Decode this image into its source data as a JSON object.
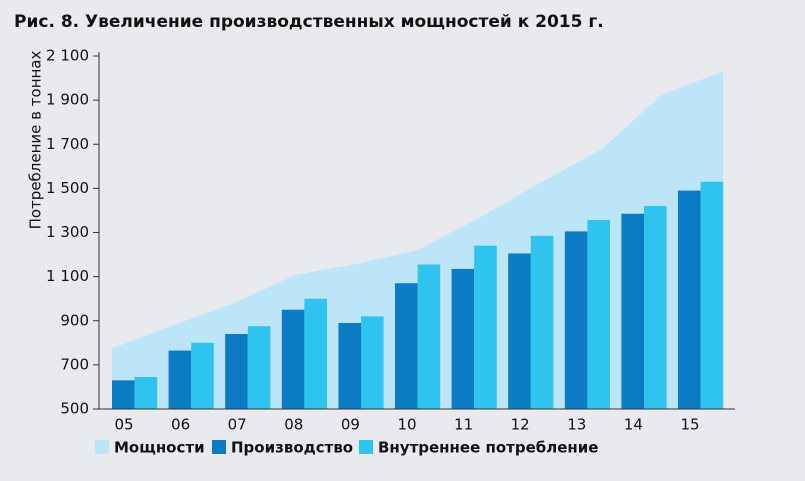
{
  "chart_data": {
    "type": "bar",
    "title": "Рис. 8. Увеличение производственных мощностей к 2015 г.",
    "y_label": "Потребление в тоннах",
    "categories": [
      "05",
      "06",
      "07",
      "08",
      "09",
      "10",
      "11",
      "12",
      "13",
      "14",
      "15"
    ],
    "series": [
      {
        "name": "Мощности",
        "type": "area",
        "color": "#bde5f9",
        "values": [
          775,
          880,
          980,
          1108,
          1158,
          1220,
          1365,
          1525,
          1675,
          1925,
          2030
        ]
      },
      {
        "name": "Производство",
        "color": "#0b7cc4",
        "values": [
          630,
          765,
          840,
          950,
          890,
          1070,
          1135,
          1205,
          1305,
          1385,
          1490
        ]
      },
      {
        "name": "Внутреннее потребление",
        "color": "#2fc3ef",
        "values": [
          645,
          800,
          875,
          1000,
          920,
          1155,
          1240,
          1285,
          1357,
          1420,
          1530
        ]
      }
    ],
    "ylim": [
      500,
      2100
    ],
    "yticks": [
      500,
      700,
      900,
      {
        "value": 1100,
        "label": "1 100"
      },
      {
        "value": 1300,
        "label": "1 300"
      },
      {
        "value": 1500,
        "label": "1 500"
      },
      {
        "value": 1700,
        "label": "1 700"
      },
      {
        "value": 1900,
        "label": "1 900"
      },
      {
        "value": 2100,
        "label": "2 100"
      }
    ]
  }
}
